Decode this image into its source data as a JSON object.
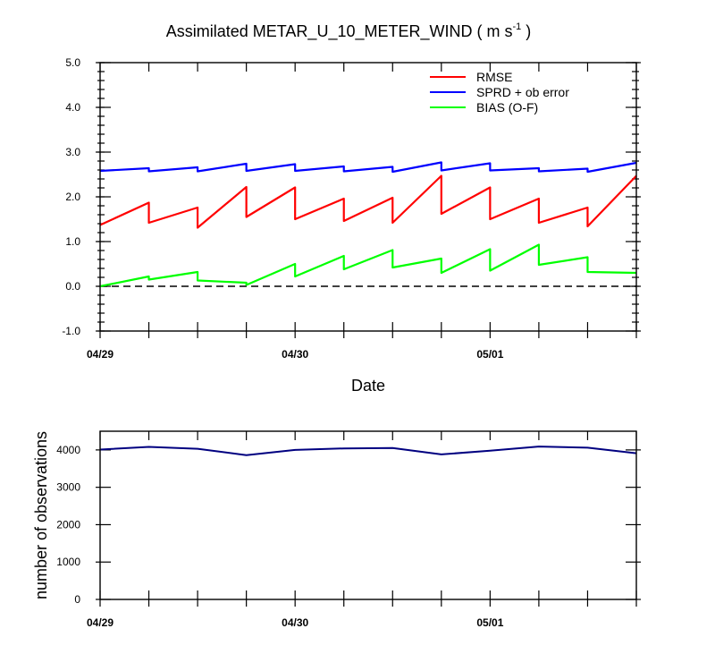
{
  "chart_data": [
    {
      "type": "line",
      "title": "Assimilated METAR_U_10_METER_WIND ( m s",
      "title_superscript": "-1",
      "title_suffix": " )",
      "xlabel": "Date",
      "ylabel": "",
      "ylim": [
        -1.0,
        5.0
      ],
      "yticks": [
        "-1.0",
        "0.0",
        "1.0",
        "2.0",
        "3.0",
        "4.0",
        "5.0"
      ],
      "x_range": [
        "04/29 00:00",
        "05/01 18:00"
      ],
      "x_tick_labels": [
        "04/29",
        "04/30",
        "05/01"
      ],
      "legend_placement": "top-right",
      "zero_line": true,
      "series": [
        {
          "name": "RMSE",
          "color": "#ff0000",
          "points": [
            [
              "04/29 00:00",
              1.37
            ],
            [
              "04/29 06:00",
              1.87
            ],
            [
              "04/29 06:00",
              1.42
            ],
            [
              "04/29 12:00",
              1.76
            ],
            [
              "04/29 12:00",
              1.31
            ],
            [
              "04/29 18:00",
              2.22
            ],
            [
              "04/29 18:00",
              1.55
            ],
            [
              "04/30 00:00",
              2.21
            ],
            [
              "04/30 00:00",
              1.5
            ],
            [
              "04/30 06:00",
              1.96
            ],
            [
              "04/30 06:00",
              1.46
            ],
            [
              "04/30 12:00",
              1.98
            ],
            [
              "04/30 12:00",
              1.42
            ],
            [
              "04/30 18:00",
              2.47
            ],
            [
              "04/30 18:00",
              1.62
            ],
            [
              "05/01 00:00",
              2.21
            ],
            [
              "05/01 00:00",
              1.5
            ],
            [
              "05/01 06:00",
              1.96
            ],
            [
              "05/01 06:00",
              1.42
            ],
            [
              "05/01 12:00",
              1.76
            ],
            [
              "05/01 12:00",
              1.34
            ],
            [
              "05/01 18:00",
              2.47
            ]
          ]
        },
        {
          "name": "SPRD + ob error",
          "color": "#0000ff",
          "points": [
            [
              "04/29 00:00",
              2.58
            ],
            [
              "04/29 06:00",
              2.64
            ],
            [
              "04/29 06:00",
              2.57
            ],
            [
              "04/29 12:00",
              2.66
            ],
            [
              "04/29 12:00",
              2.57
            ],
            [
              "04/29 18:00",
              2.74
            ],
            [
              "04/29 18:00",
              2.58
            ],
            [
              "04/30 00:00",
              2.73
            ],
            [
              "04/30 00:00",
              2.58
            ],
            [
              "04/30 06:00",
              2.68
            ],
            [
              "04/30 06:00",
              2.57
            ],
            [
              "04/30 12:00",
              2.67
            ],
            [
              "04/30 12:00",
              2.56
            ],
            [
              "04/30 18:00",
              2.77
            ],
            [
              "04/30 18:00",
              2.59
            ],
            [
              "05/01 00:00",
              2.75
            ],
            [
              "05/01 00:00",
              2.59
            ],
            [
              "05/01 06:00",
              2.64
            ],
            [
              "05/01 06:00",
              2.57
            ],
            [
              "05/01 12:00",
              2.63
            ],
            [
              "05/01 12:00",
              2.56
            ],
            [
              "05/01 18:00",
              2.76
            ]
          ]
        },
        {
          "name": "BIAS (O-F)",
          "color": "#00ff00",
          "points": [
            [
              "04/29 00:00",
              0.0
            ],
            [
              "04/29 06:00",
              0.22
            ],
            [
              "04/29 06:00",
              0.15
            ],
            [
              "04/29 12:00",
              0.32
            ],
            [
              "04/29 12:00",
              0.13
            ],
            [
              "04/29 18:00",
              0.08
            ],
            [
              "04/29 18:00",
              0.03
            ],
            [
              "04/30 00:00",
              0.5
            ],
            [
              "04/30 00:00",
              0.22
            ],
            [
              "04/30 06:00",
              0.68
            ],
            [
              "04/30 06:00",
              0.38
            ],
            [
              "04/30 12:00",
              0.81
            ],
            [
              "04/30 12:00",
              0.42
            ],
            [
              "04/30 18:00",
              0.62
            ],
            [
              "04/30 18:00",
              0.3
            ],
            [
              "05/01 00:00",
              0.83
            ],
            [
              "05/01 00:00",
              0.35
            ],
            [
              "05/01 06:00",
              0.93
            ],
            [
              "05/01 06:00",
              0.48
            ],
            [
              "05/01 12:00",
              0.65
            ],
            [
              "05/01 12:00",
              0.32
            ],
            [
              "05/01 18:00",
              0.3
            ]
          ]
        }
      ]
    },
    {
      "type": "line",
      "title": "",
      "xlabel": "",
      "ylabel": "number of observations",
      "ylim": [
        0,
        4500
      ],
      "yticks": [
        "0",
        "1000",
        "2000",
        "3000",
        "4000"
      ],
      "x_range": [
        "04/29 00:00",
        "05/01 18:00"
      ],
      "x_tick_labels": [
        "04/29",
        "04/30",
        "05/01"
      ],
      "series": [
        {
          "color": "#000080",
          "points": [
            [
              "04/29 00:00",
              4010
            ],
            [
              "04/29 06:00",
              4080
            ],
            [
              "04/29 12:00",
              4030
            ],
            [
              "04/29 18:00",
              3860
            ],
            [
              "04/30 00:00",
              4000
            ],
            [
              "04/30 06:00",
              4040
            ],
            [
              "04/30 12:00",
              4050
            ],
            [
              "04/30 18:00",
              3880
            ],
            [
              "05/01 00:00",
              3980
            ],
            [
              "05/01 06:00",
              4090
            ],
            [
              "05/01 12:00",
              4060
            ],
            [
              "05/01 18:00",
              3910
            ]
          ]
        }
      ]
    }
  ]
}
